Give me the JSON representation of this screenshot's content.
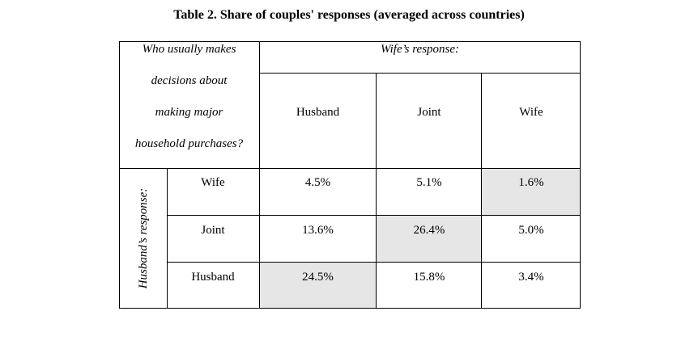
{
  "title": "Table 2. Share of couples' responses (averaged across countries)",
  "corner_label": [
    "Who usually makes",
    "decisions about",
    "making major",
    "household purchases?"
  ],
  "wife_response_label": "Wife’s response:",
  "husband_response_label": "Husband’s response:",
  "columns": [
    "Husband",
    "Joint",
    "Wife"
  ],
  "rows": [
    {
      "label": "Wife",
      "values": [
        "4.5%",
        "5.1%",
        "1.6%"
      ]
    },
    {
      "label": "Joint",
      "values": [
        "13.6%",
        "26.4%",
        "5.0%"
      ]
    },
    {
      "label": "Husband",
      "values": [
        "24.5%",
        "15.8%",
        "3.4%"
      ]
    }
  ],
  "highlight_color": "#e6e6e6"
}
